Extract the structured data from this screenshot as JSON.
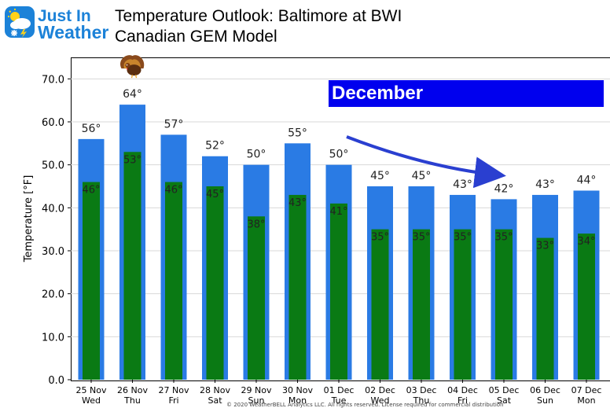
{
  "logo": {
    "line1": "Just In",
    "line2": "Weather"
  },
  "header": {
    "title_line1": "Temperature Outlook: Baltimore at BWI",
    "title_line2": "Canadian GEM Model"
  },
  "annotation": {
    "month": "December"
  },
  "footer": {
    "copyright": "© 2020 WeatherBELL Analytics LLC. All rights reserved. License required for commercial distribution"
  },
  "colors": {
    "high_bar": "#2a7be4",
    "low_bar": "#0a7a14",
    "banner": "#0000ee",
    "arrow": "#2a3fd0"
  },
  "icons": {
    "thanksgiving": "turkey-icon",
    "logo": "sun-cloud-snowflake-icon"
  },
  "chart_data": {
    "type": "bar",
    "ylabel": "Temperature [°F]",
    "ylim": [
      0,
      75
    ],
    "yticks": [
      "0.0",
      "10.0",
      "20.0",
      "30.0",
      "40.0",
      "50.0",
      "60.0",
      "70.0"
    ],
    "grid": true,
    "categories": [
      "25 Nov",
      "26 Nov",
      "27 Nov",
      "28 Nov",
      "29 Nov",
      "30 Nov",
      "01 Dec",
      "02 Dec",
      "03 Dec",
      "04 Dec",
      "05 Dec",
      "06 Dec",
      "07 Dec"
    ],
    "weekdays": [
      "Wed",
      "Thu",
      "Fri",
      "Sat",
      "Sun",
      "Mon",
      "Tue",
      "Wed",
      "Thu",
      "Fri",
      "Sat",
      "Sun",
      "Mon"
    ],
    "series": [
      {
        "values": [
          56,
          64,
          57,
          52,
          50,
          55,
          50,
          45,
          45,
          43,
          42,
          43,
          44
        ],
        "labels": [
          "56°",
          "64°",
          "57°",
          "52°",
          "50°",
          "55°",
          "50°",
          "45°",
          "45°",
          "43°",
          "42°",
          "43°",
          "44°"
        ]
      },
      {
        "values": [
          46,
          53,
          46,
          45,
          38,
          43,
          41,
          35,
          35,
          35,
          35,
          33,
          34
        ],
        "labels": [
          "46°",
          "53°",
          "46°",
          "45°",
          "38°",
          "43°",
          "41°",
          "35°",
          "35°",
          "35°",
          "35°",
          "33°",
          "34°"
        ]
      }
    ]
  }
}
